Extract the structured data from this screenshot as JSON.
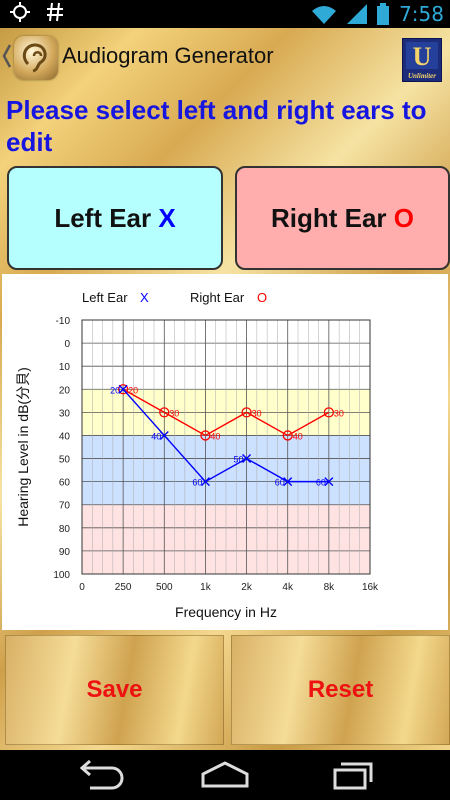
{
  "status_bar": {
    "time": "7:58",
    "left_icons": [
      "target-icon",
      "hash-icon"
    ],
    "right_icons": [
      "wifi-icon",
      "signal-icon",
      "battery-icon"
    ]
  },
  "action_bar": {
    "title": "Audiogram Generator",
    "logo_text": "Unlimiter"
  },
  "prompt": "Please select left and right ears to edit",
  "ears": {
    "left_label": "Left Ear ",
    "left_symbol": "X",
    "right_label": "Right Ear ",
    "right_symbol": "O"
  },
  "buttons": {
    "save": "Save",
    "reset": "Reset"
  },
  "colors": {
    "left_series": "#0000ff",
    "right_series": "#ff0000",
    "prompt_text": "#1616e0"
  },
  "chart_data": {
    "type": "line",
    "legend": [
      {
        "label": "Left Ear",
        "symbol": "X"
      },
      {
        "label": "Right Ear",
        "symbol": "O"
      }
    ],
    "categories": [
      "0",
      "250",
      "500",
      "1k",
      "2k",
      "4k",
      "8k",
      "16k"
    ],
    "yticks": [
      -10,
      0,
      10,
      20,
      30,
      40,
      50,
      60,
      70,
      80,
      90,
      100
    ],
    "ylim": [
      -10,
      100
    ],
    "ylabel": "Hearing Level in dB(分貝)",
    "xlabel": "Frequency in Hz",
    "bands": [
      {
        "from": 20,
        "to": 40,
        "color": "#ffffcc"
      },
      {
        "from": 40,
        "to": 70,
        "color": "#cce0ff"
      },
      {
        "from": 70,
        "to": 100,
        "color": "#ffe3e3"
      }
    ],
    "series": [
      {
        "name": "Left Ear",
        "symbol": "X",
        "color": "#0000ff",
        "x": [
          "250",
          "500",
          "1k",
          "2k",
          "4k",
          "8k"
        ],
        "values": [
          20,
          40,
          60,
          50,
          60,
          60
        ]
      },
      {
        "name": "Right Ear",
        "symbol": "O",
        "color": "#ff0000",
        "x": [
          "250",
          "500",
          "1k",
          "2k",
          "4k",
          "8k"
        ],
        "values": [
          20,
          30,
          40,
          30,
          40,
          30
        ]
      }
    ]
  }
}
